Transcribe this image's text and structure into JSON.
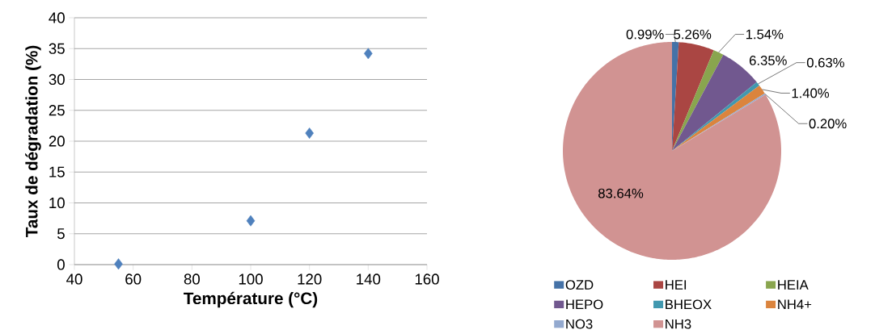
{
  "chart_data": [
    {
      "type": "scatter",
      "xlabel": "Température (°C)",
      "ylabel": "Taux de dégradation (%)",
      "x": [
        55,
        100,
        120,
        140
      ],
      "values": [
        0.1,
        7.1,
        21.3,
        34.2
      ],
      "color": "#4f81bd",
      "marker": "diamond",
      "grid": "y",
      "xlim": [
        40,
        160
      ],
      "ylim": [
        0,
        40
      ],
      "xticks": [
        40,
        60,
        80,
        100,
        120,
        140,
        160
      ],
      "yticks": [
        0,
        5,
        10,
        15,
        20,
        25,
        30,
        35,
        40
      ]
    },
    {
      "type": "pie",
      "categories": [
        "OZD",
        "HEI",
        "HEIA",
        "HEPO",
        "BHEOX",
        "NH4+",
        "NO3",
        "NH3"
      ],
      "values": [
        0.99,
        5.26,
        1.54,
        6.35,
        0.63,
        1.4,
        0.2,
        83.64
      ],
      "colors": [
        "#4572a7",
        "#aa4643",
        "#89a54e",
        "#71588f",
        "#4198af",
        "#db843d",
        "#93a9cf",
        "#d19392"
      ],
      "value_labels": [
        "0.99%",
        "5.26%",
        "1.54%",
        "6.35%",
        "0.63%",
        "1.40%",
        "0.20%",
        "83.64%"
      ],
      "legend": "bottom"
    }
  ]
}
